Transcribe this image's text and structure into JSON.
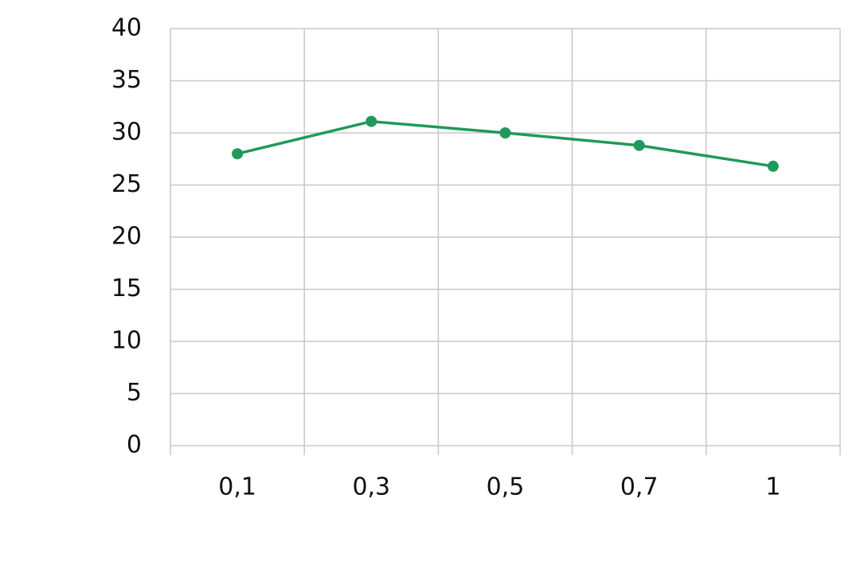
{
  "chart_data": {
    "type": "line",
    "categories": [
      "0,1",
      "0,3",
      "0,5",
      "0,7",
      "1"
    ],
    "series": [
      {
        "color": "#21995a",
        "values": [
          28,
          31.1,
          30,
          28.8,
          26.8
        ]
      }
    ],
    "ylim": [
      0,
      40
    ],
    "yticks": [
      0,
      5,
      10,
      15,
      20,
      25,
      30,
      35,
      40
    ],
    "grid": true
  }
}
